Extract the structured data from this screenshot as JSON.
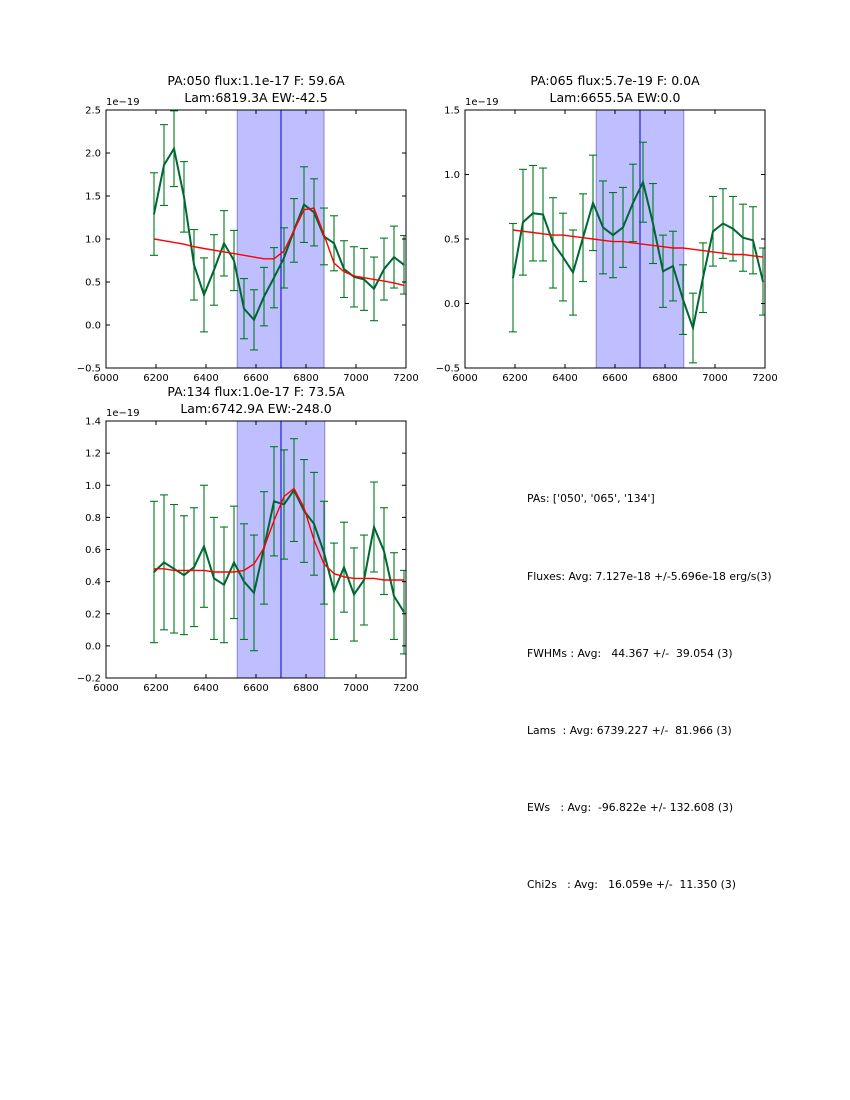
{
  "chart_data": [
    {
      "type": "line",
      "title": [
        "PA:050 flux:1.1e-17 F: 59.6A",
        "Lam:6819.3A EW:-42.5"
      ],
      "xlabel": "",
      "ylabel": "",
      "y_offset_label": "1e−19",
      "xlim": [
        6000,
        7200
      ],
      "ylim": [
        -0.5,
        2.5
      ],
      "xticks": [
        6000,
        6200,
        6400,
        6600,
        6800,
        7000,
        7200
      ],
      "xtick_labels": [
        "6000",
        "6200",
        "6400",
        "6600",
        "6800",
        "7000",
        "7200"
      ],
      "yticks": [
        -0.5,
        0.0,
        0.5,
        1.0,
        1.5,
        2.0,
        2.5
      ],
      "ytick_labels": [
        "−0.5",
        "0.0",
        "0.5",
        "1.0",
        "1.5",
        "2.0",
        "2.5"
      ],
      "shaded_band": [
        6525,
        6872
      ],
      "vline": 6700,
      "x": [
        6192,
        6232,
        6272,
        6312,
        6352,
        6392,
        6432,
        6472,
        6512,
        6552,
        6592,
        6632,
        6672,
        6712,
        6752,
        6792,
        6832,
        6872,
        6912,
        6952,
        6992,
        7032,
        7072,
        7112,
        7152,
        7192
      ],
      "series": [
        {
          "name": "data",
          "color": "#006633",
          "values": [
            1.29,
            1.86,
            2.05,
            1.49,
            0.7,
            0.35,
            0.64,
            0.95,
            0.75,
            0.19,
            0.06,
            0.33,
            0.55,
            0.78,
            1.1,
            1.4,
            1.31,
            1.03,
            0.95,
            0.65,
            0.56,
            0.53,
            0.42,
            0.65,
            0.79,
            0.7
          ],
          "errors": [
            0.48,
            0.47,
            0.44,
            0.41,
            0.41,
            0.43,
            0.41,
            0.38,
            0.35,
            0.35,
            0.35,
            0.34,
            0.35,
            0.35,
            0.37,
            0.44,
            0.39,
            0.33,
            0.32,
            0.33,
            0.35,
            0.36,
            0.37,
            0.36,
            0.36,
            0.34
          ]
        },
        {
          "name": "fit",
          "color": "#ff0000",
          "values": [
            1.0,
            0.98,
            0.96,
            0.94,
            0.91,
            0.89,
            0.87,
            0.85,
            0.83,
            0.81,
            0.79,
            0.77,
            0.77,
            0.86,
            1.1,
            1.34,
            1.36,
            1.05,
            0.72,
            0.62,
            0.57,
            0.55,
            0.53,
            0.51,
            0.49,
            0.46
          ]
        }
      ]
    },
    {
      "type": "line",
      "title": [
        "PA:065 flux:5.7e-19 F: 0.0A",
        "Lam:6655.5A EW:0.0"
      ],
      "xlabel": "",
      "ylabel": "",
      "y_offset_label": "1e−19",
      "xlim": [
        6000,
        7200
      ],
      "ylim": [
        -0.5,
        1.5
      ],
      "xticks": [
        6000,
        6200,
        6400,
        6600,
        6800,
        7000,
        7200
      ],
      "xtick_labels": [
        "6000",
        "6200",
        "6400",
        "6600",
        "6800",
        "7000",
        "7200"
      ],
      "yticks": [
        -0.5,
        0.0,
        0.5,
        1.0,
        1.5
      ],
      "ytick_labels": [
        "−0.5",
        "0.0",
        "0.5",
        "1.0",
        "1.5"
      ],
      "shaded_band": [
        6525,
        6875
      ],
      "vline": 6700,
      "x": [
        6192,
        6232,
        6272,
        6312,
        6352,
        6392,
        6432,
        6472,
        6512,
        6552,
        6592,
        6632,
        6672,
        6712,
        6752,
        6792,
        6832,
        6872,
        6912,
        6952,
        6992,
        7032,
        7072,
        7112,
        7152,
        7192
      ],
      "series": [
        {
          "name": "data",
          "color": "#006633",
          "values": [
            0.2,
            0.63,
            0.7,
            0.69,
            0.47,
            0.36,
            0.24,
            0.51,
            0.78,
            0.59,
            0.53,
            0.59,
            0.78,
            0.94,
            0.62,
            0.25,
            0.29,
            0.03,
            -0.19,
            0.2,
            0.56,
            0.62,
            0.58,
            0.51,
            0.49,
            0.17
          ],
          "errors": [
            0.42,
            0.41,
            0.37,
            0.36,
            0.35,
            0.34,
            0.33,
            0.34,
            0.37,
            0.36,
            0.33,
            0.31,
            0.3,
            0.31,
            0.31,
            0.28,
            0.27,
            0.27,
            0.27,
            0.27,
            0.27,
            0.27,
            0.25,
            0.26,
            0.26,
            0.26
          ]
        },
        {
          "name": "fit",
          "color": "#ff0000",
          "values": [
            0.57,
            0.56,
            0.55,
            0.54,
            0.53,
            0.53,
            0.52,
            0.51,
            0.5,
            0.49,
            0.48,
            0.48,
            0.47,
            0.46,
            0.45,
            0.44,
            0.43,
            0.43,
            0.42,
            0.41,
            0.4,
            0.39,
            0.38,
            0.38,
            0.37,
            0.36
          ]
        }
      ]
    },
    {
      "type": "line",
      "title": [
        "PA:134 flux:1.0e-17 F: 73.5A",
        "Lam:6742.9A EW:-248.0"
      ],
      "xlabel": "",
      "ylabel": "",
      "y_offset_label": "1e−19",
      "xlim": [
        6000,
        7200
      ],
      "ylim": [
        -0.2,
        1.4
      ],
      "xticks": [
        6000,
        6200,
        6400,
        6600,
        6800,
        7000,
        7200
      ],
      "xtick_labels": [
        "6000",
        "6200",
        "6400",
        "6600",
        "6800",
        "7000",
        "7200"
      ],
      "yticks": [
        -0.2,
        0.0,
        0.2,
        0.4,
        0.6,
        0.8,
        1.0,
        1.2,
        1.4
      ],
      "ytick_labels": [
        "−0.2",
        "0.0",
        "0.2",
        "0.4",
        "0.6",
        "0.8",
        "1.0",
        "1.2",
        "1.4"
      ],
      "shaded_band": [
        6525,
        6875
      ],
      "vline": 6700,
      "x": [
        6192,
        6232,
        6272,
        6312,
        6352,
        6392,
        6432,
        6472,
        6512,
        6552,
        6592,
        6632,
        6672,
        6712,
        6752,
        6792,
        6832,
        6872,
        6912,
        6952,
        6992,
        7032,
        7072,
        7112,
        7152,
        7192
      ],
      "series": [
        {
          "name": "data",
          "color": "#006633",
          "values": [
            0.46,
            0.52,
            0.48,
            0.44,
            0.49,
            0.62,
            0.42,
            0.38,
            0.52,
            0.4,
            0.33,
            0.61,
            0.9,
            0.88,
            0.97,
            0.84,
            0.76,
            0.58,
            0.34,
            0.49,
            0.32,
            0.41,
            0.74,
            0.59,
            0.31,
            0.21
          ],
          "errors": [
            0.44,
            0.42,
            0.4,
            0.37,
            0.37,
            0.38,
            0.38,
            0.36,
            0.35,
            0.36,
            0.36,
            0.35,
            0.34,
            0.34,
            0.32,
            0.32,
            0.32,
            0.32,
            0.3,
            0.28,
            0.29,
            0.28,
            0.28,
            0.27,
            0.27,
            0.26
          ]
        },
        {
          "name": "fit",
          "color": "#ff0000",
          "values": [
            0.48,
            0.48,
            0.47,
            0.47,
            0.47,
            0.47,
            0.46,
            0.46,
            0.46,
            0.47,
            0.51,
            0.61,
            0.78,
            0.93,
            0.98,
            0.86,
            0.66,
            0.51,
            0.45,
            0.43,
            0.42,
            0.42,
            0.42,
            0.41,
            0.41,
            0.41
          ]
        }
      ]
    }
  ],
  "summary": {
    "lines": [
      "PAs: ['050', '065', '134']",
      "Fluxes: Avg: 7.127e-18 +/-5.696e-18 erg/s(3)",
      "FWHMs : Avg:   44.367 +/-  39.054 (3)",
      "Lams  : Avg: 6739.227 +/-  81.966 (3)",
      "EWs   : Avg:  -96.822e +/- 132.608 (3)",
      "Chi2s   : Avg:   16.059e +/-  11.350 (3)"
    ]
  },
  "colors": {
    "data": "#006633",
    "errorbar": "#007a1f",
    "fit": "#ff0000",
    "band_fill": "#bfbfff",
    "band_edge": "#8585c2",
    "vline": "#0000cc"
  }
}
